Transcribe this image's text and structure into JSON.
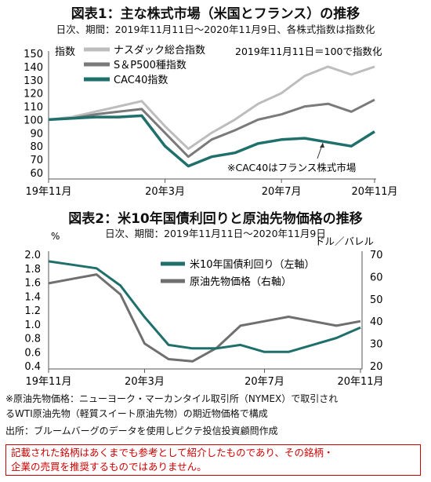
{
  "chart1": {
    "title": "図表1：主な株式市場（米国とフランス）の推移",
    "subtitle": "日次、期間：2019年11月11日～2020年11月9日、各株式指数は指数化",
    "ylabel": "指数",
    "base_note": "2019年11月11日＝100で指数化",
    "footnote": "※CAC40はフランス株式市場",
    "xticks": [
      "19年11月",
      "20年3月",
      "20年7月",
      "20年11月"
    ],
    "yticks": [
      "150",
      "140",
      "130",
      "120",
      "110",
      "100",
      "90",
      "80",
      "70",
      "60"
    ],
    "legend": [
      "ナスダック総合指数",
      "S＆P500種指数",
      "CAC40指数"
    ],
    "colors": [
      "#bdbdbd",
      "#7a7a7a",
      "#1f6f6a"
    ]
  },
  "chart2": {
    "title": "図表2：米10年国債利回りと原油先物価格の推移",
    "subtitle": "日次、期間：2019年11月11日～2020年11月9日",
    "ylabel_left": "%",
    "ylabel_right": "ドル／バレル",
    "xticks": [
      "19年11月",
      "20年3月",
      "20年7月",
      "20年11月"
    ],
    "yticks_left": [
      "2.0",
      "1.8",
      "1.6",
      "1.4",
      "1.2",
      "1.0",
      "0.8",
      "0.6",
      "0.4"
    ],
    "yticks_right": [
      "70",
      "60",
      "50",
      "40",
      "30",
      "20"
    ],
    "legend": [
      "米10年国債利回り（左軸）",
      "原油先物価格（右軸）"
    ],
    "colors": [
      "#1f6f6a",
      "#6f6f6f"
    ]
  },
  "notes": {
    "line1": "※原油先物価格：ニューヨーク・マーカンタイル取引所（NYMEX）で取引され",
    "line2": "るWTI原油先物（軽質スイート原油先物）の期近物価格で構成",
    "line3": "出所：ブルームバーグのデータを使用しピクテ投信投資顧問作成",
    "warning1": "記載された銘柄はあくまでも参考として紹介したものであり、その銘柄・",
    "warning2": "企業の売買を推奨するものではありません。"
  },
  "chart_data": [
    {
      "type": "line",
      "title": "図表1：主な株式市場（米国とフランス）の推移",
      "ylabel": "指数",
      "ylim": [
        60,
        150
      ],
      "x": [
        "2019-11",
        "2019-12",
        "2020-01",
        "2020-02",
        "2020-02-20",
        "2020-03",
        "2020-03-23",
        "2020-04",
        "2020-05",
        "2020-06",
        "2020-07",
        "2020-08",
        "2020-09",
        "2020-10",
        "2020-11-09"
      ],
      "series": [
        {
          "name": "ナスダック総合指数",
          "values": [
            100,
            102,
            106,
            110,
            114,
            95,
            78,
            90,
            100,
            112,
            120,
            133,
            140,
            134,
            140
          ]
        },
        {
          "name": "S＆P500種指数",
          "values": [
            100,
            101,
            104,
            106,
            108,
            90,
            72,
            85,
            92,
            100,
            104,
            110,
            112,
            106,
            115
          ]
        },
        {
          "name": "CAC40指数",
          "values": [
            100,
            101,
            102,
            102,
            103,
            80,
            65,
            72,
            75,
            82,
            85,
            86,
            83,
            80,
            91
          ]
        }
      ]
    },
    {
      "type": "line",
      "title": "図表2：米10年国債利回りと原油先物価格の推移",
      "x": [
        "2019-11",
        "2019-12",
        "2020-01",
        "2020-02",
        "2020-03",
        "2020-03-20",
        "2020-04",
        "2020-05",
        "2020-06",
        "2020-07",
        "2020-08",
        "2020-09",
        "2020-10",
        "2020-11-09"
      ],
      "series": [
        {
          "name": "米10年国債利回り（左軸）",
          "axis": "left",
          "ylim": [
            0.4,
            2.0
          ],
          "values": [
            1.9,
            1.85,
            1.8,
            1.55,
            1.1,
            0.7,
            0.65,
            0.65,
            0.7,
            0.6,
            0.6,
            0.7,
            0.8,
            0.95
          ]
        },
        {
          "name": "原油先物価格（右軸）",
          "axis": "right",
          "ylim": [
            20,
            70
          ],
          "values": [
            57,
            59,
            61,
            52,
            30,
            23,
            22,
            28,
            38,
            40,
            42,
            40,
            38,
            40
          ]
        }
      ]
    }
  ]
}
